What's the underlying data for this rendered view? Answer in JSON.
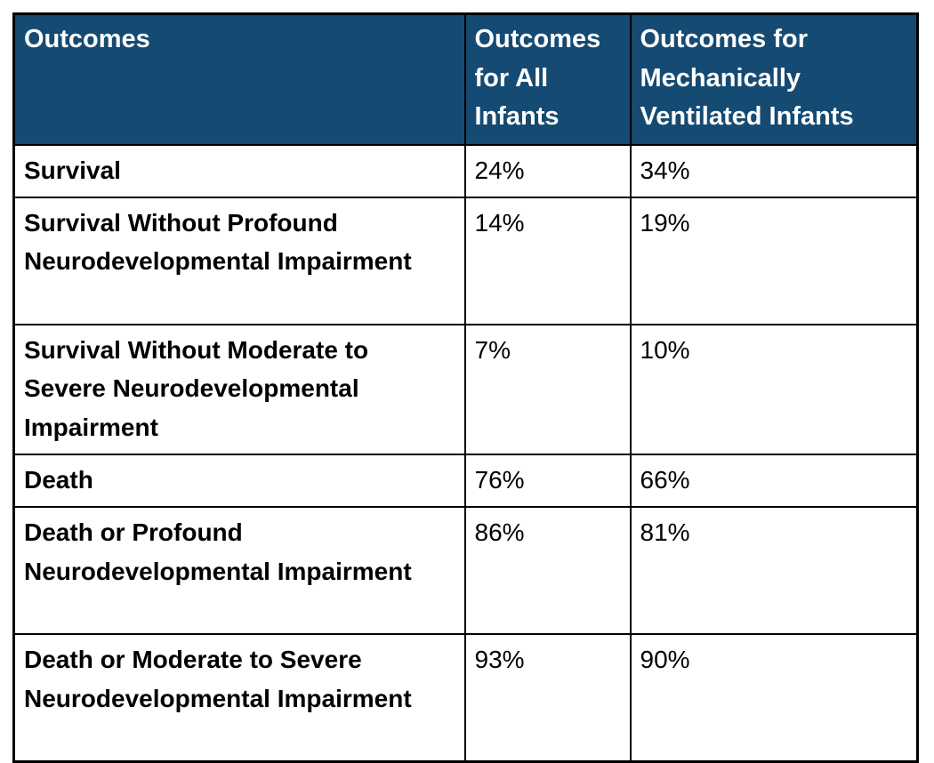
{
  "chart_data": {
    "type": "table",
    "title": "Outcomes",
    "columns": [
      "Outcomes",
      "Outcomes for All Infants",
      "Outcomes for Mechanically Ventilated Infants"
    ],
    "rows": [
      [
        "Survival",
        "24%",
        "34%"
      ],
      [
        "Survival Without Profound Neurodevelopmental Impairment",
        "14%",
        "19%"
      ],
      [
        "Survival Without Moderate to Severe Neurodevelopmental Impairment",
        "7%",
        "10%"
      ],
      [
        "Death",
        "76%",
        "66%"
      ],
      [
        "Death or Profound Neurodevelopmental Impairment",
        "86%",
        "81%"
      ],
      [
        "Death or Moderate to Severe Neurodevelopmental Impairment",
        "93%",
        "90%"
      ]
    ],
    "layout": {
      "header_position": "top",
      "grid": "all-borders"
    },
    "colors": {
      "header_bg": "#154A72",
      "header_text": "#FFFFFF",
      "body_text": "#000000",
      "border": "#000000",
      "page_bg": "#FFFFFF"
    }
  }
}
